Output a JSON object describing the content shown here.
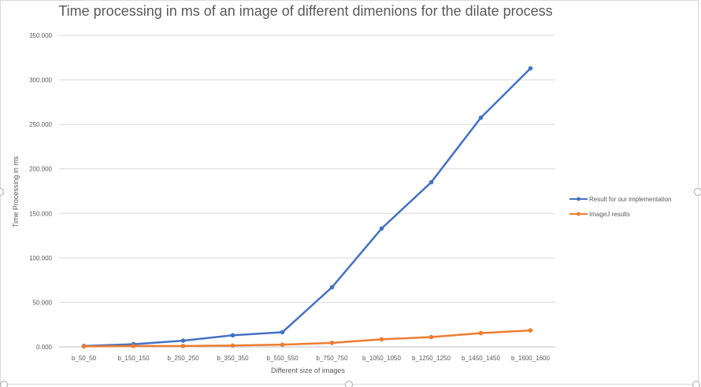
{
  "chart_data": {
    "type": "line",
    "title": "Time processing in ms of an image of different dimenions for the dilate process",
    "xlabel": "Different size of images",
    "ylabel": "Time Processing in ms",
    "categories": [
      "b_50_50",
      "b_150_150",
      "b_250_250",
      "b_350_350",
      "b_550_550",
      "b_750_750",
      "b_1050_1050",
      "b_1250_1250",
      "b_1450_1450",
      "b_1600_1600"
    ],
    "ylim": [
      0,
      350
    ],
    "yticks": [
      0,
      50,
      100,
      150,
      200,
      250,
      300,
      350
    ],
    "ytick_labels": [
      "0.000",
      "50.000",
      "100.000",
      "150.000",
      "200.000",
      "250.000",
      "300.000",
      "350.000"
    ],
    "grid": true,
    "legend": "right",
    "series": [
      {
        "name": "Result for our implementation",
        "color": "#4472c4",
        "values": [
          1,
          3,
          7,
          13,
          16.5,
          67,
          133,
          185,
          257.5,
          313
        ]
      },
      {
        "name": "ImageJ results",
        "color": "#ed7d31",
        "values": [
          0.5,
          1,
          1,
          1.5,
          2.5,
          4.5,
          8.5,
          11,
          15.5,
          18.5
        ]
      }
    ]
  }
}
